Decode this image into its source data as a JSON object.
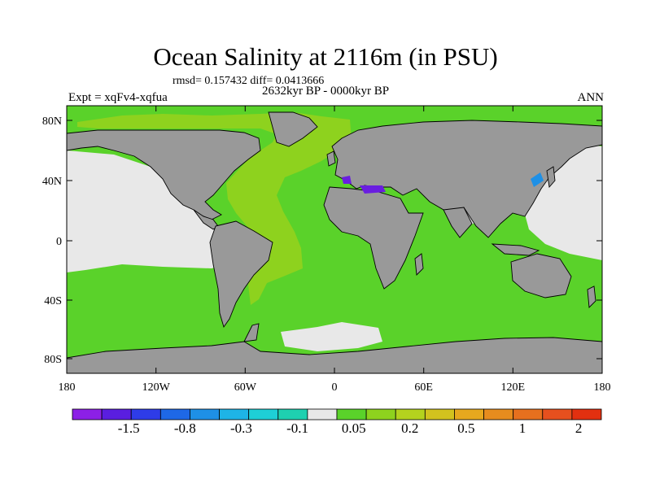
{
  "header": {
    "title": "Ocean Salinity at 2116m (in PSU)",
    "stats": "rmsd= 0.157432 diff= 0.0413666",
    "period": "2632kyr BP - 0000kyr BP",
    "experiment": "Expt = xqFv4-xqfua",
    "season": "ANN"
  },
  "axes": {
    "lon_ticks": [
      "180",
      "120W",
      "60W",
      "0",
      "60E",
      "120E",
      "180"
    ],
    "lat_ticks": [
      "80N",
      "40N",
      "0",
      "40S",
      "80S"
    ]
  },
  "colorbar": {
    "colors": [
      "#8c20e6",
      "#5a1ee0",
      "#2e3ce8",
      "#1e68e6",
      "#1e90e6",
      "#1eb4e6",
      "#1ecfd6",
      "#1ed0b0",
      "#e8e8e8",
      "#5ad22a",
      "#8ed21e",
      "#b4d21e",
      "#d2c21e",
      "#e6a81e",
      "#e68c1e",
      "#e6701e",
      "#e6501e",
      "#e23010"
    ],
    "labels": [
      "-1.5",
      "-0.8",
      "-0.3",
      "-0.1",
      "0.05",
      "0.2",
      "0.5",
      "1",
      "2"
    ]
  },
  "map_colors": {
    "land": "#999999",
    "ocean_positive": "#5ad22a",
    "ocean_yellowgreen": "#8ed21e",
    "near_zero": "#e8e8e8",
    "negative_purple": "#6a1ee0",
    "negative_blue": "#1e90e6"
  }
}
